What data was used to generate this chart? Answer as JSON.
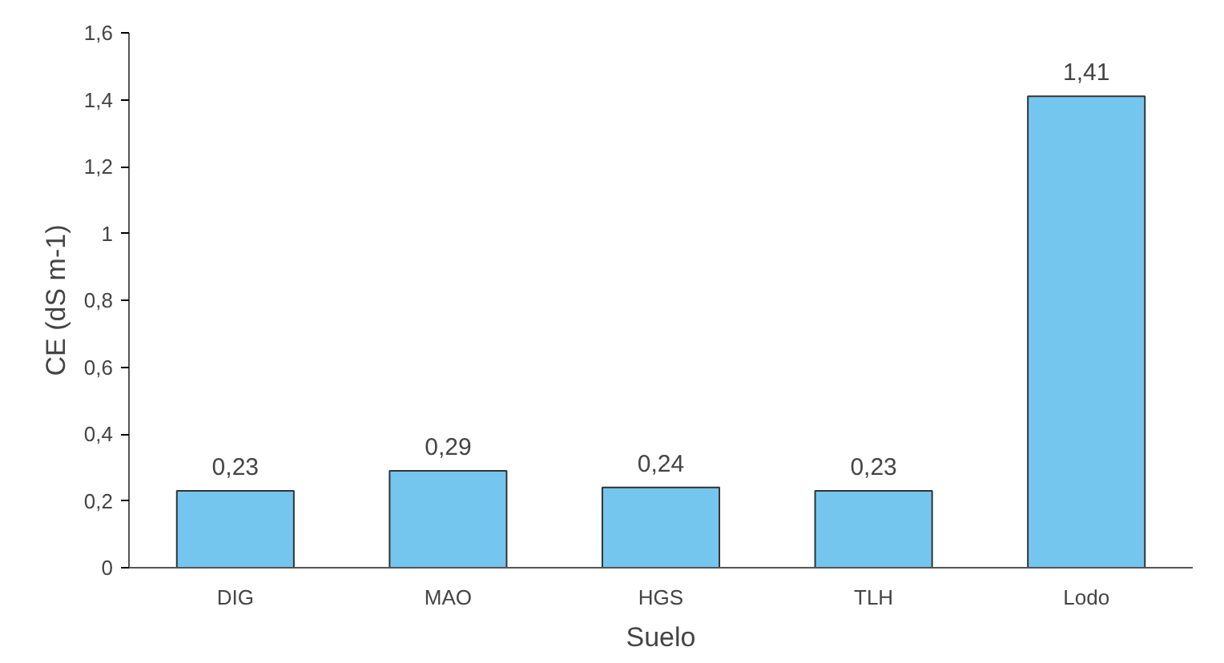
{
  "chart_data": {
    "type": "bar",
    "xlabel": "Suelo",
    "ylabel": "CE (dS m-1)",
    "categories": [
      "DIG",
      "MAO",
      "HGS",
      "TLH",
      "Lodo"
    ],
    "values": [
      0.23,
      0.29,
      0.24,
      0.23,
      1.41
    ],
    "value_labels": [
      "0,23",
      "0,29",
      "0,24",
      "0,23",
      "1,41"
    ],
    "color": "#74c6ef",
    "ylim": [
      0,
      1.6
    ],
    "yticks": [
      0,
      {
        "value": 0.2,
        "label": "0,2"
      },
      {
        "value": 0.4,
        "label": "0,4"
      },
      {
        "value": 0.6,
        "label": "0,6"
      },
      {
        "value": 0.8,
        "label": "0,8"
      },
      1,
      {
        "value": 1.2,
        "label": "1,2"
      },
      {
        "value": 1.4,
        "label": "1,4"
      },
      {
        "value": 1.6,
        "label": "1,6"
      }
    ],
    "grid": false
  }
}
